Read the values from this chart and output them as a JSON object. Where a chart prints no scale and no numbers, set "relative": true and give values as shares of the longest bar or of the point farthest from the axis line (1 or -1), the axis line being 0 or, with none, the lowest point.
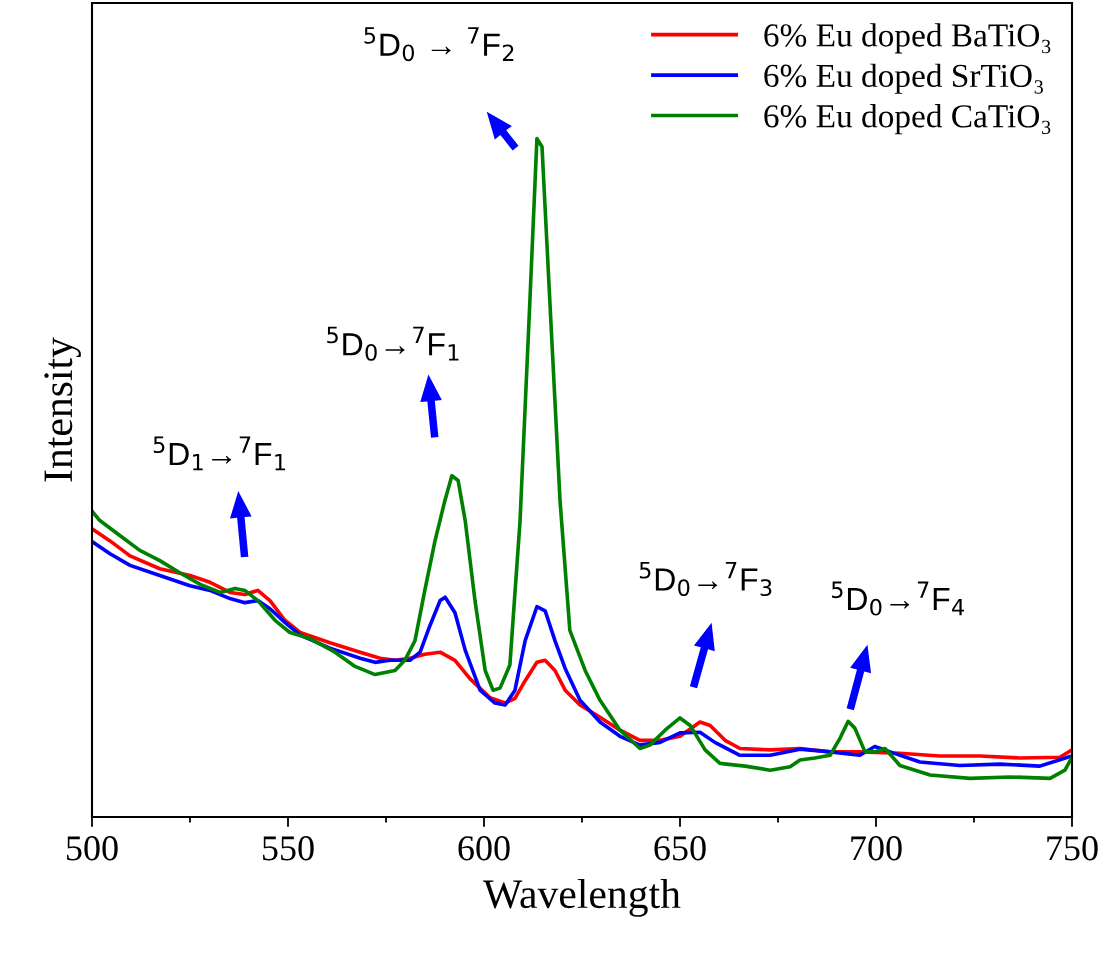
{
  "chart_data": {
    "type": "line",
    "relative": true,
    "xlabel": "Wavelength",
    "ylabel": "Intensity",
    "xlim": [
      500,
      750
    ],
    "xticks": [
      500,
      {
        "value": 525,
        "label": null
      },
      550,
      {
        "value": 575,
        "label": null
      },
      600,
      {
        "value": 625,
        "label": null
      },
      650,
      {
        "value": 675,
        "label": null
      },
      700,
      {
        "value": 725,
        "label": null
      },
      750
    ],
    "legend": "top right",
    "grid": false,
    "line_style": "solid",
    "marker": "none",
    "series": [
      {
        "name": "6% Eu doped BaTiO₃",
        "color": "#ff0000",
        "x": [
          500,
          504.6,
          509.7,
          517.3,
          525,
          530.1,
          535.2,
          539,
          542.3,
          545.4,
          549.2,
          553.1,
          560.7,
          568.4,
          573.5,
          577.3,
          581.1,
          584.9,
          588.8,
          592.6,
          596.4,
          601.5,
          605.4,
          607.9,
          610.5,
          613.5,
          615.6,
          618.1,
          620.7,
          624.5,
          629.6,
          634.7,
          639.8,
          644.9,
          650,
          655.1,
          657.7,
          661.5,
          665.3,
          673,
          680.6,
          688.3,
          695.9,
          706.1,
          716.3,
          726.5,
          736.7,
          746.9,
          750
        ],
        "values": [
          0.425,
          0.407,
          0.385,
          0.366,
          0.356,
          0.346,
          0.331,
          0.328,
          0.334,
          0.319,
          0.29,
          0.272,
          0.257,
          0.243,
          0.234,
          0.231,
          0.234,
          0.24,
          0.243,
          0.231,
          0.204,
          0.176,
          0.168,
          0.175,
          0.201,
          0.228,
          0.231,
          0.216,
          0.187,
          0.165,
          0.147,
          0.128,
          0.113,
          0.113,
          0.119,
          0.14,
          0.135,
          0.113,
          0.101,
          0.099,
          0.101,
          0.096,
          0.096,
          0.094,
          0.09,
          0.09,
          0.087,
          0.088,
          0.099
        ]
      },
      {
        "name": "6% Eu doped SrTiO₃",
        "color": "#0000ff",
        "x": [
          500,
          504.6,
          509.7,
          517.3,
          525,
          530.1,
          535.2,
          539,
          542.3,
          545.4,
          549.2,
          553.1,
          560.7,
          568.4,
          572.2,
          576,
          581.1,
          583.7,
          586.2,
          588.8,
          590.1,
          592.6,
          595.2,
          599,
          602.8,
          605.4,
          607.9,
          610.5,
          613.5,
          615.6,
          618.1,
          620.7,
          624.5,
          629.6,
          634.7,
          639.8,
          644.9,
          650,
          655.1,
          658.9,
          665.3,
          673,
          680.6,
          688.3,
          695.9,
          699.7,
          703.6,
          711.2,
          721.4,
          731.6,
          741.8,
          750
        ],
        "values": [
          0.406,
          0.388,
          0.371,
          0.356,
          0.341,
          0.334,
          0.322,
          0.316,
          0.319,
          0.307,
          0.287,
          0.268,
          0.249,
          0.234,
          0.228,
          0.231,
          0.231,
          0.243,
          0.282,
          0.319,
          0.324,
          0.301,
          0.246,
          0.187,
          0.168,
          0.165,
          0.187,
          0.26,
          0.31,
          0.304,
          0.26,
          0.219,
          0.172,
          0.14,
          0.119,
          0.106,
          0.11,
          0.124,
          0.125,
          0.11,
          0.091,
          0.091,
          0.1,
          0.096,
          0.091,
          0.104,
          0.096,
          0.081,
          0.076,
          0.078,
          0.075,
          0.09
        ]
      },
      {
        "name": "6% Eu doped CaTiO₃",
        "color": "#008000",
        "x": [
          500,
          502,
          507.1,
          512.2,
          517.3,
          522.4,
          527.6,
          532.7,
          536.5,
          539,
          542.3,
          546.7,
          550.5,
          555.6,
          562,
          567.1,
          572.2,
          577.3,
          579.8,
          582.4,
          584.9,
          587.5,
          590,
          591.8,
          593.4,
          595.2,
          597.7,
          600.3,
          602.3,
          604.1,
          606.6,
          609.2,
          611.7,
          613.5,
          614.8,
          616.8,
          619.4,
          621.9,
          625.8,
          629.6,
          634.7,
          639.8,
          642.3,
          646.2,
          650,
          652.6,
          656.4,
          660.2,
          666.6,
          673,
          678.1,
          680.6,
          684.4,
          688.3,
          690.8,
          692.9,
          694.6,
          697.2,
          699.7,
          702.3,
          706.1,
          713.8,
          724,
          734.2,
          744.4,
          748.2,
          750
        ],
        "values": [
          0.451,
          0.437,
          0.415,
          0.393,
          0.378,
          0.36,
          0.343,
          0.331,
          0.337,
          0.334,
          0.319,
          0.29,
          0.272,
          0.263,
          0.243,
          0.222,
          0.21,
          0.216,
          0.231,
          0.26,
          0.334,
          0.407,
          0.466,
          0.503,
          0.496,
          0.437,
          0.319,
          0.216,
          0.187,
          0.19,
          0.224,
          0.437,
          0.76,
          1.0,
          0.988,
          0.76,
          0.466,
          0.275,
          0.216,
          0.172,
          0.128,
          0.101,
          0.106,
          0.128,
          0.146,
          0.135,
          0.099,
          0.079,
          0.075,
          0.069,
          0.074,
          0.084,
          0.087,
          0.091,
          0.116,
          0.141,
          0.131,
          0.096,
          0.096,
          0.101,
          0.076,
          0.062,
          0.057,
          0.059,
          0.057,
          0.069,
          0.088
        ]
      }
    ],
    "annotations": [
      "$^{5}$D$_{1}$→$^{7}$F$_{1}$",
      "$^{5}$D$_{0}$→$^{7}$F$_{1}$",
      "$^{5}$D$_{0}$ → $^{7}$F$_{2}$",
      "$^{5}$D$_{0}$→$^{7}$F$_{3}$",
      "$^{5}$D$_{0}$→$^{7}$F$_{4}$"
    ]
  }
}
